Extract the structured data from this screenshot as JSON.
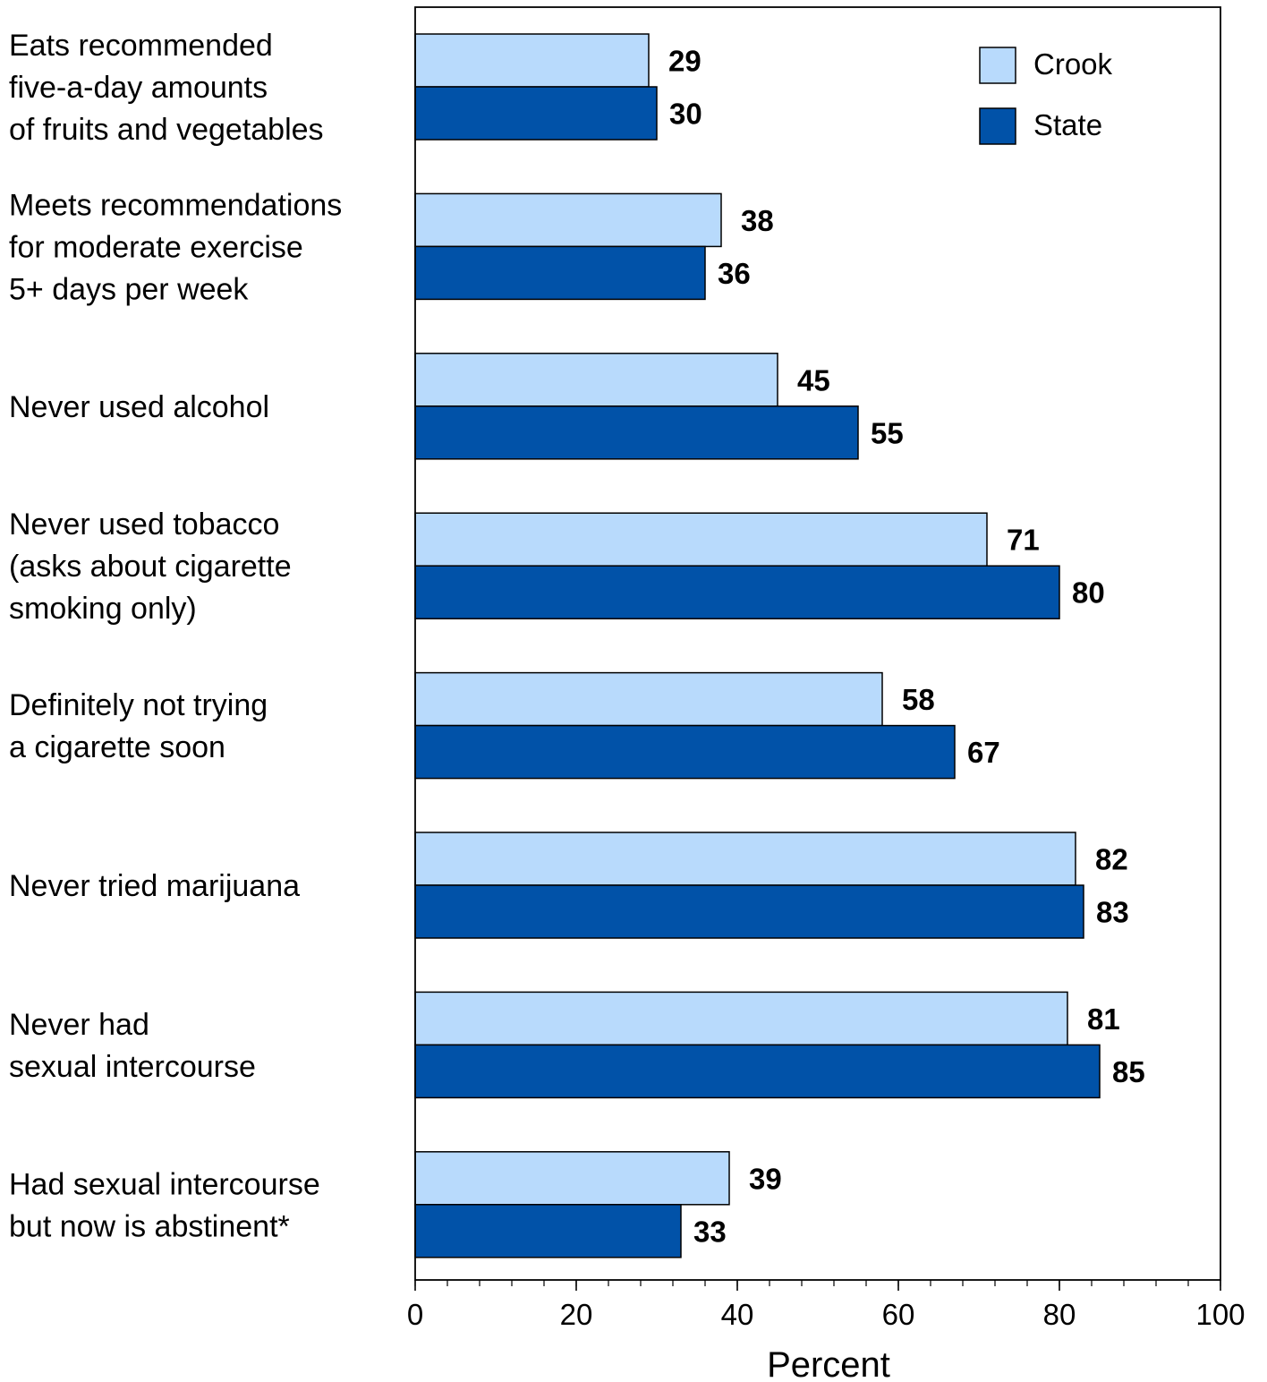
{
  "chart_data": {
    "type": "bar",
    "orientation": "horizontal",
    "categories": [
      [
        "Eats recommended",
        "five-a-day amounts",
        "of fruits and vegetables"
      ],
      [
        "Meets recommendations",
        "for moderate exercise",
        "5+ days per week"
      ],
      [
        "Never used alcohol"
      ],
      [
        "Never used tobacco",
        "(asks about cigarette",
        "smoking only)"
      ],
      [
        "Definitely not trying",
        "a cigarette soon"
      ],
      [
        "Never tried marijuana"
      ],
      [
        "Never had",
        "sexual intercourse"
      ],
      [
        "Had sexual intercourse",
        "but now is abstinent*"
      ]
    ],
    "series": [
      {
        "name": "Crook",
        "color": "#b8dafc",
        "values": [
          29,
          38,
          45,
          71,
          58,
          82,
          81,
          39
        ]
      },
      {
        "name": "State",
        "color": "#0152a8",
        "values": [
          30,
          36,
          55,
          80,
          67,
          83,
          85,
          33
        ]
      }
    ],
    "xlabel": "Percent",
    "ylabel": "",
    "xlim": [
      0,
      100
    ],
    "xticks": [
      0,
      20,
      40,
      60,
      80,
      100
    ],
    "minor_tick_step": 4,
    "grid": false,
    "legend_position": "top-right",
    "data_labels": true
  }
}
